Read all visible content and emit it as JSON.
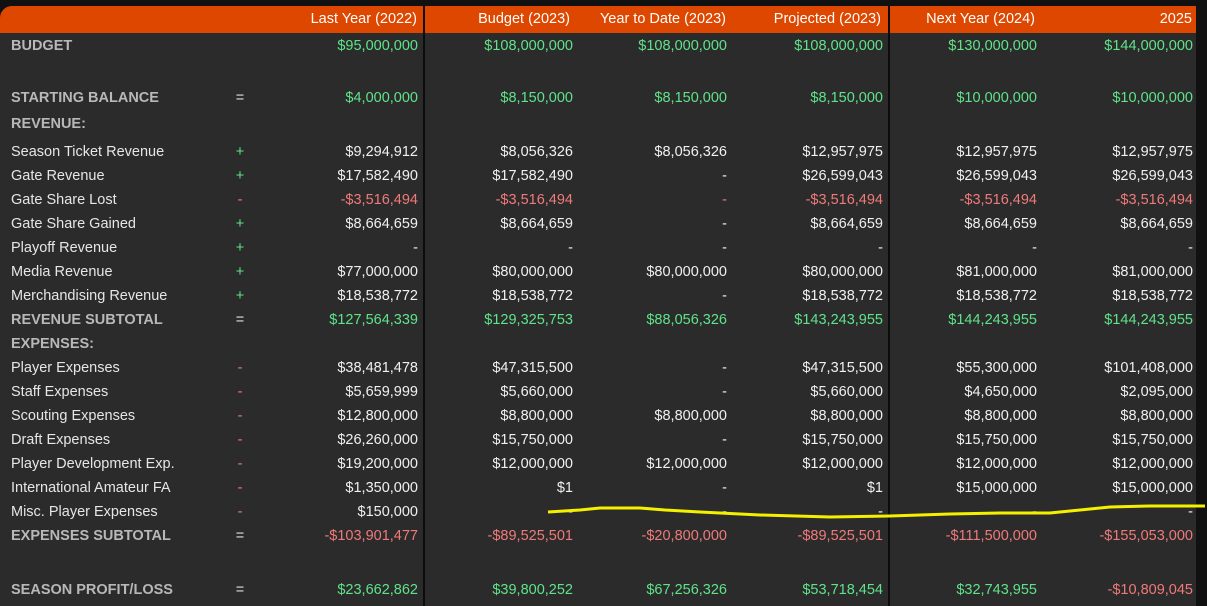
{
  "columns": [
    "Last Year (2022)",
    "Budget (2023)",
    "Year to Date (2023)",
    "Projected (2023)",
    "Next Year (2024)",
    "2025"
  ],
  "colors": {
    "header": "#dd4700",
    "positive": "#5fe38a",
    "negative": "#f07a7a"
  },
  "rows": [
    {
      "label": "BUDGET",
      "section": true,
      "sign": "",
      "tone": "g",
      "values": [
        "$95,000,000",
        "$108,000,000",
        "$108,000,000",
        "$108,000,000",
        "$130,000,000",
        "$144,000,000"
      ]
    },
    {
      "label": "STARTING BALANCE",
      "section": true,
      "sign": "=",
      "tone": "g",
      "values": [
        "$4,000,000",
        "$8,150,000",
        "$8,150,000",
        "$8,150,000",
        "$10,000,000",
        "$10,000,000"
      ]
    },
    {
      "label": "REVENUE:",
      "section": true,
      "sign": "",
      "tone": "w",
      "values": [
        "",
        "",
        "",
        "",
        "",
        ""
      ]
    },
    {
      "label": "Season Ticket Revenue",
      "sign": "+",
      "tone": "w",
      "values": [
        "$9,294,912",
        "$8,056,326",
        "$8,056,326",
        "$12,957,975",
        "$12,957,975",
        "$12,957,975"
      ]
    },
    {
      "label": "Gate Revenue",
      "sign": "+",
      "tone": "w",
      "values": [
        "$17,582,490",
        "$17,582,490",
        "-",
        "$26,599,043",
        "$26,599,043",
        "$26,599,043"
      ]
    },
    {
      "label": "Gate Share Lost",
      "sign": "-",
      "tone": "r",
      "values": [
        "-$3,516,494",
        "-$3,516,494",
        "-",
        "-$3,516,494",
        "-$3,516,494",
        "-$3,516,494"
      ]
    },
    {
      "label": "Gate Share Gained",
      "sign": "+",
      "tone": "w",
      "values": [
        "$8,664,659",
        "$8,664,659",
        "-",
        "$8,664,659",
        "$8,664,659",
        "$8,664,659"
      ]
    },
    {
      "label": "Playoff Revenue",
      "sign": "+",
      "tone": "w",
      "values": [
        "-",
        "-",
        "-",
        "-",
        "-",
        "-"
      ]
    },
    {
      "label": "Media Revenue",
      "sign": "+",
      "tone": "w",
      "values": [
        "$77,000,000",
        "$80,000,000",
        "$80,000,000",
        "$80,000,000",
        "$81,000,000",
        "$81,000,000"
      ]
    },
    {
      "label": "Merchandising Revenue",
      "sign": "+",
      "tone": "w",
      "values": [
        "$18,538,772",
        "$18,538,772",
        "-",
        "$18,538,772",
        "$18,538,772",
        "$18,538,772"
      ]
    },
    {
      "label": "REVENUE SUBTOTAL",
      "section": true,
      "sign": "=",
      "tone": "g",
      "values": [
        "$127,564,339",
        "$129,325,753",
        "$88,056,326",
        "$143,243,955",
        "$144,243,955",
        "$144,243,955"
      ]
    },
    {
      "label": "EXPENSES:",
      "section": true,
      "sign": "",
      "tone": "w",
      "values": [
        "",
        "",
        "",
        "",
        "",
        ""
      ]
    },
    {
      "label": "Player Expenses",
      "sign": "-",
      "tone": "w",
      "values": [
        "$38,481,478",
        "$47,315,500",
        "-",
        "$47,315,500",
        "$55,300,000",
        "$101,408,000"
      ]
    },
    {
      "label": "Staff Expenses",
      "sign": "-",
      "tone": "w",
      "values": [
        "$5,659,999",
        "$5,660,000",
        "-",
        "$5,660,000",
        "$4,650,000",
        "$2,095,000"
      ]
    },
    {
      "label": "Scouting Expenses",
      "sign": "-",
      "tone": "w",
      "values": [
        "$12,800,000",
        "$8,800,000",
        "$8,800,000",
        "$8,800,000",
        "$8,800,000",
        "$8,800,000"
      ]
    },
    {
      "label": "Draft Expenses",
      "sign": "-",
      "tone": "w",
      "values": [
        "$26,260,000",
        "$15,750,000",
        "-",
        "$15,750,000",
        "$15,750,000",
        "$15,750,000"
      ]
    },
    {
      "label": "Player Development Exp.",
      "sign": "-",
      "tone": "w",
      "values": [
        "$19,200,000",
        "$12,000,000",
        "$12,000,000",
        "$12,000,000",
        "$12,000,000",
        "$12,000,000"
      ]
    },
    {
      "label": "International Amateur FA",
      "sign": "-",
      "tone": "w",
      "values": [
        "$1,350,000",
        "$1",
        "-",
        "$1",
        "$15,000,000",
        "$15,000,000"
      ]
    },
    {
      "label": "Misc. Player Expenses",
      "sign": "-",
      "tone": "w",
      "values": [
        "$150,000",
        "-",
        "-",
        "-",
        "-",
        "-"
      ]
    },
    {
      "label": "EXPENSES SUBTOTAL",
      "section": true,
      "sign": "=",
      "tone": "r",
      "values": [
        "-$103,901,477",
        "-$89,525,501",
        "-$20,800,000",
        "-$89,525,501",
        "-$111,500,000",
        "-$155,053,000"
      ]
    },
    {
      "label": "SEASON PROFIT/LOSS",
      "section": true,
      "sign": "=",
      "tone": "g",
      "values": [
        "$23,662,862",
        "$39,800,252",
        "$67,256,326",
        "$53,718,454",
        "$32,743,955",
        "-$10,809,045"
      ]
    }
  ]
}
